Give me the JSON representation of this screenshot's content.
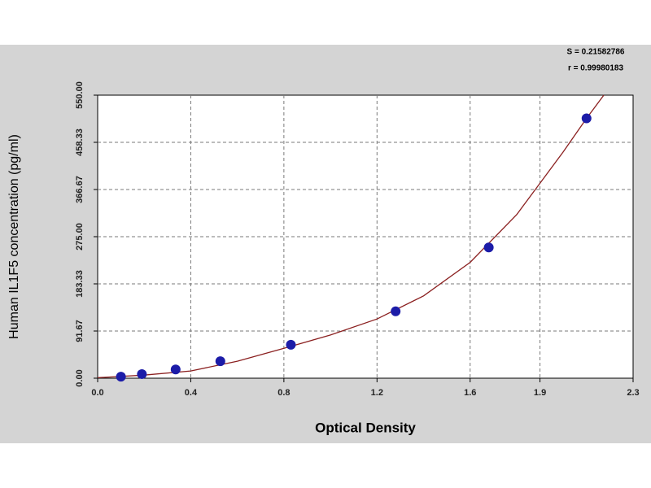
{
  "chart_data": {
    "type": "scatter",
    "x_label": "Optical Density",
    "y_label": "Human IL1F5 concentration (pg/ml)",
    "annotations": [
      "S = 0.21582786",
      "r = 0.99980183"
    ],
    "x": [
      0.1,
      0.19,
      0.335,
      0.527,
      0.83,
      1.28,
      1.68,
      2.1
    ],
    "values": [
      3,
      8,
      17,
      33,
      65,
      130,
      254,
      505
    ],
    "color": "#1c1ca8",
    "curve": {
      "color": "#8b2020",
      "x": [
        0,
        0.2,
        0.4,
        0.6,
        0.8,
        1.0,
        1.2,
        1.4,
        1.6,
        1.8,
        1.9,
        2.0,
        2.1,
        2.174
      ],
      "values": [
        1,
        6,
        14,
        33,
        58,
        84,
        115,
        160,
        225,
        318,
        379,
        440,
        505,
        550
      ]
    },
    "xlim": [
      0,
      2.3
    ],
    "xticks": [
      {
        "value": 0,
        "label": "0.0"
      },
      0.4,
      0.8,
      1.2,
      1.6,
      1.9,
      2.3
    ],
    "ylim": [
      0,
      550
    ],
    "yticks": [
      {
        "value": 0,
        "label": "0.00"
      },
      91.67,
      183.33,
      {
        "value": 275,
        "label": "275.00"
      },
      366.67,
      458.33,
      {
        "value": 550,
        "label": "550.00"
      }
    ],
    "grid": true
  }
}
